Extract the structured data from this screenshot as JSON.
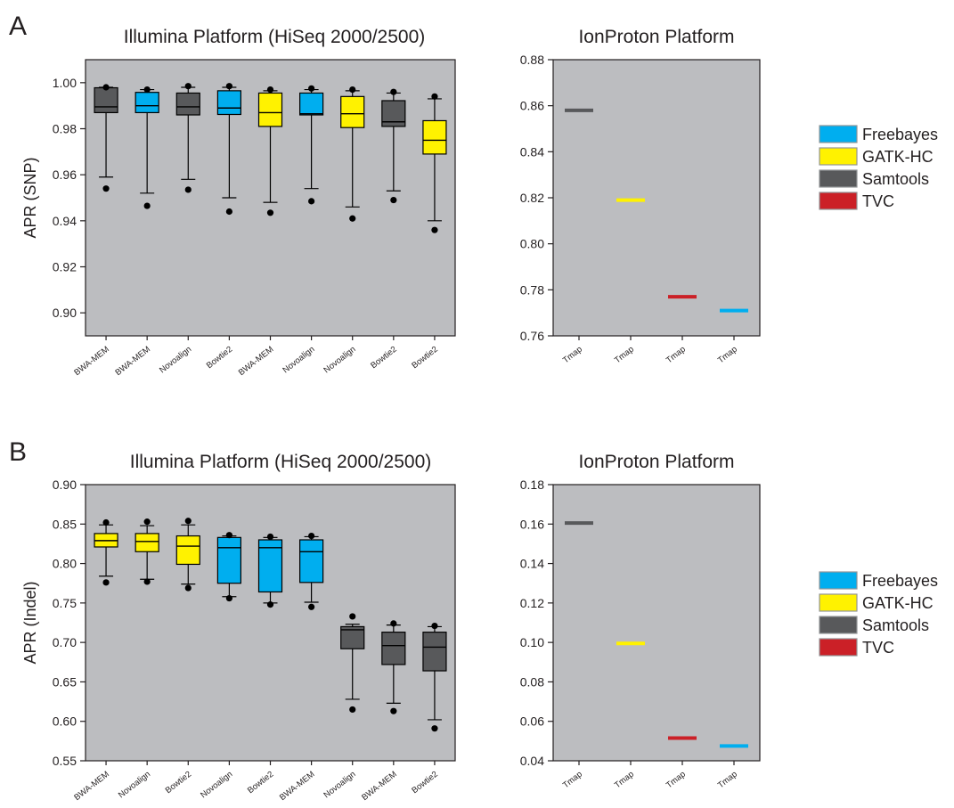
{
  "colors": {
    "plot_bg": "#bcbdc0",
    "Freebayes": "#00aeef",
    "GATK-HC": "#fff200",
    "Samtools": "#58595b",
    "TVC": "#cb2027"
  },
  "legend": {
    "entries": [
      "Freebayes",
      "GATK-HC",
      "Samtools",
      "TVC"
    ]
  },
  "chart_data": [
    {
      "panel": "A",
      "type": "box",
      "title": "Illumina Platform (HiSeq 2000/2500)",
      "xlabel": "",
      "ylabel": "APR (SNP)",
      "ylim": [
        0.89,
        1.01
      ],
      "yticks": [
        "0.90",
        "0.92",
        "0.94",
        "0.96",
        "0.98",
        "1.00"
      ],
      "grid": false,
      "boxes": [
        {
          "label": "BWA-MEM",
          "caller": "Samtools",
          "q1": 0.987,
          "median": 0.9895,
          "q3": 0.9978,
          "whisker_low": 0.959,
          "whisker_high": 0.998,
          "outliers": [
            0.954,
            0.998
          ]
        },
        {
          "label": "BWA-MEM",
          "caller": "Freebayes",
          "q1": 0.987,
          "median": 0.99,
          "q3": 0.9958,
          "whisker_low": 0.952,
          "whisker_high": 0.997,
          "outliers": [
            0.9465,
            0.997
          ]
        },
        {
          "label": "Novoalign",
          "caller": "Samtools",
          "q1": 0.986,
          "median": 0.9895,
          "q3": 0.9955,
          "whisker_low": 0.958,
          "whisker_high": 0.998,
          "outliers": [
            0.9535,
            0.9985
          ]
        },
        {
          "label": "Bowtie2",
          "caller": "Freebayes",
          "q1": 0.9862,
          "median": 0.989,
          "q3": 0.9965,
          "whisker_low": 0.95,
          "whisker_high": 0.998,
          "outliers": [
            0.944,
            0.9985
          ]
        },
        {
          "label": "BWA-MEM",
          "caller": "GATK-HC",
          "q1": 0.981,
          "median": 0.987,
          "q3": 0.9955,
          "whisker_low": 0.948,
          "whisker_high": 0.9965,
          "outliers": [
            0.9435,
            0.997
          ]
        },
        {
          "label": "Novoalign",
          "caller": "Freebayes",
          "q1": 0.986,
          "median": 0.9865,
          "q3": 0.9955,
          "whisker_low": 0.954,
          "whisker_high": 0.997,
          "outliers": [
            0.9485,
            0.9975
          ]
        },
        {
          "label": "Novoalign",
          "caller": "GATK-HC",
          "q1": 0.9805,
          "median": 0.9865,
          "q3": 0.994,
          "whisker_low": 0.946,
          "whisker_high": 0.9965,
          "outliers": [
            0.941,
            0.997
          ]
        },
        {
          "label": "Bowtie2",
          "caller": "Samtools",
          "q1": 0.981,
          "median": 0.983,
          "q3": 0.9922,
          "whisker_low": 0.953,
          "whisker_high": 0.9955,
          "outliers": [
            0.949,
            0.996
          ]
        },
        {
          "label": "Bowtie2",
          "caller": "GATK-HC",
          "q1": 0.969,
          "median": 0.975,
          "q3": 0.9835,
          "whisker_low": 0.94,
          "whisker_high": 0.993,
          "outliers": [
            0.936,
            0.994
          ]
        }
      ]
    },
    {
      "panel": "A",
      "type": "scatter",
      "title": "IonProton Platform",
      "xlabel": "",
      "ylabel": "",
      "ylim": [
        0.76,
        0.88
      ],
      "yticks": [
        "0.76",
        "0.78",
        "0.80",
        "0.82",
        "0.84",
        "0.86",
        "0.88"
      ],
      "grid": false,
      "points": [
        {
          "label": "Tmap",
          "caller": "Samtools",
          "value": 0.858
        },
        {
          "label": "Tmap",
          "caller": "GATK-HC",
          "value": 0.819
        },
        {
          "label": "Tmap",
          "caller": "TVC",
          "value": 0.777
        },
        {
          "label": "Tmap",
          "caller": "Freebayes",
          "value": 0.771
        }
      ]
    },
    {
      "panel": "B",
      "type": "box",
      "title": "Illumina Platform (HiSeq 2000/2500)",
      "xlabel": "",
      "ylabel": "APR (Indel)",
      "ylim": [
        0.55,
        0.9
      ],
      "yticks": [
        "0.55",
        "0.60",
        "0.65",
        "0.70",
        "0.75",
        "0.80",
        "0.85",
        "0.90"
      ],
      "grid": false,
      "boxes": [
        {
          "label": "BWA-MEM",
          "caller": "GATK-HC",
          "q1": 0.821,
          "median": 0.829,
          "q3": 0.838,
          "whisker_low": 0.784,
          "whisker_high": 0.849,
          "outliers": [
            0.776,
            0.852
          ]
        },
        {
          "label": "Novoalign",
          "caller": "GATK-HC",
          "q1": 0.815,
          "median": 0.828,
          "q3": 0.838,
          "whisker_low": 0.78,
          "whisker_high": 0.848,
          "outliers": [
            0.777,
            0.853
          ]
        },
        {
          "label": "Bowtie2",
          "caller": "GATK-HC",
          "q1": 0.799,
          "median": 0.822,
          "q3": 0.835,
          "whisker_low": 0.774,
          "whisker_high": 0.849,
          "outliers": [
            0.769,
            0.854
          ]
        },
        {
          "label": "Novoalign",
          "caller": "Freebayes",
          "q1": 0.775,
          "median": 0.82,
          "q3": 0.833,
          "whisker_low": 0.758,
          "whisker_high": 0.835,
          "outliers": [
            0.756,
            0.836
          ]
        },
        {
          "label": "Bowtie2",
          "caller": "Freebayes",
          "q1": 0.764,
          "median": 0.82,
          "q3": 0.83,
          "whisker_low": 0.75,
          "whisker_high": 0.833,
          "outliers": [
            0.748,
            0.834
          ]
        },
        {
          "label": "BWA-MEM",
          "caller": "Freebayes",
          "q1": 0.776,
          "median": 0.815,
          "q3": 0.83,
          "whisker_low": 0.751,
          "whisker_high": 0.834,
          "outliers": [
            0.745,
            0.835
          ]
        },
        {
          "label": "Novoalign",
          "caller": "Samtools",
          "q1": 0.692,
          "median": 0.716,
          "q3": 0.72,
          "whisker_low": 0.628,
          "whisker_high": 0.723,
          "outliers": [
            0.615,
            0.733
          ]
        },
        {
          "label": "BWA-MEM",
          "caller": "Samtools",
          "q1": 0.672,
          "median": 0.696,
          "q3": 0.713,
          "whisker_low": 0.623,
          "whisker_high": 0.722,
          "outliers": [
            0.613,
            0.724
          ]
        },
        {
          "label": "Bowtie2",
          "caller": "Samtools",
          "q1": 0.664,
          "median": 0.694,
          "q3": 0.713,
          "whisker_low": 0.602,
          "whisker_high": 0.72,
          "outliers": [
            0.591,
            0.721
          ]
        }
      ]
    },
    {
      "panel": "B",
      "type": "scatter",
      "title": "IonProton Platform",
      "xlabel": "",
      "ylabel": "",
      "ylim": [
        0.04,
        0.18
      ],
      "yticks": [
        "0.04",
        "0.06",
        "0.08",
        "0.10",
        "0.12",
        "0.14",
        "0.16",
        "0.18"
      ],
      "grid": false,
      "points": [
        {
          "label": "Tmap",
          "caller": "Samtools",
          "value": 0.1605
        },
        {
          "label": "Tmap",
          "caller": "GATK-HC",
          "value": 0.0995
        },
        {
          "label": "Tmap",
          "caller": "TVC",
          "value": 0.0515
        },
        {
          "label": "Tmap",
          "caller": "Freebayes",
          "value": 0.0475
        }
      ]
    }
  ]
}
